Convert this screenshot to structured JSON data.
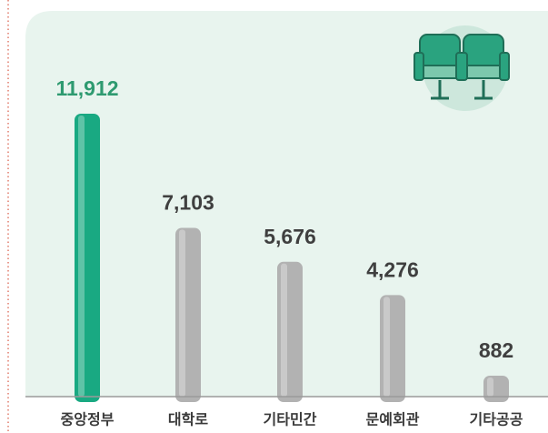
{
  "chart_data": {
    "type": "bar",
    "categories": [
      "중앙정부",
      "대학로",
      "기타민간",
      "문예회관",
      "기타공공"
    ],
    "values": [
      11912,
      7103,
      5676,
      4276,
      882
    ],
    "value_labels": [
      "11,912",
      "7,103",
      "5,676",
      "4,276",
      "882"
    ],
    "colors": [
      "#19a982",
      "#b2b2b2",
      "#b2b2b2",
      "#b2b2b2",
      "#b2b2b2"
    ],
    "label_colors": [
      "#2e9a70",
      "#3f3f3f",
      "#3f3f3f",
      "#3f3f3f",
      "#3f3f3f"
    ]
  }
}
